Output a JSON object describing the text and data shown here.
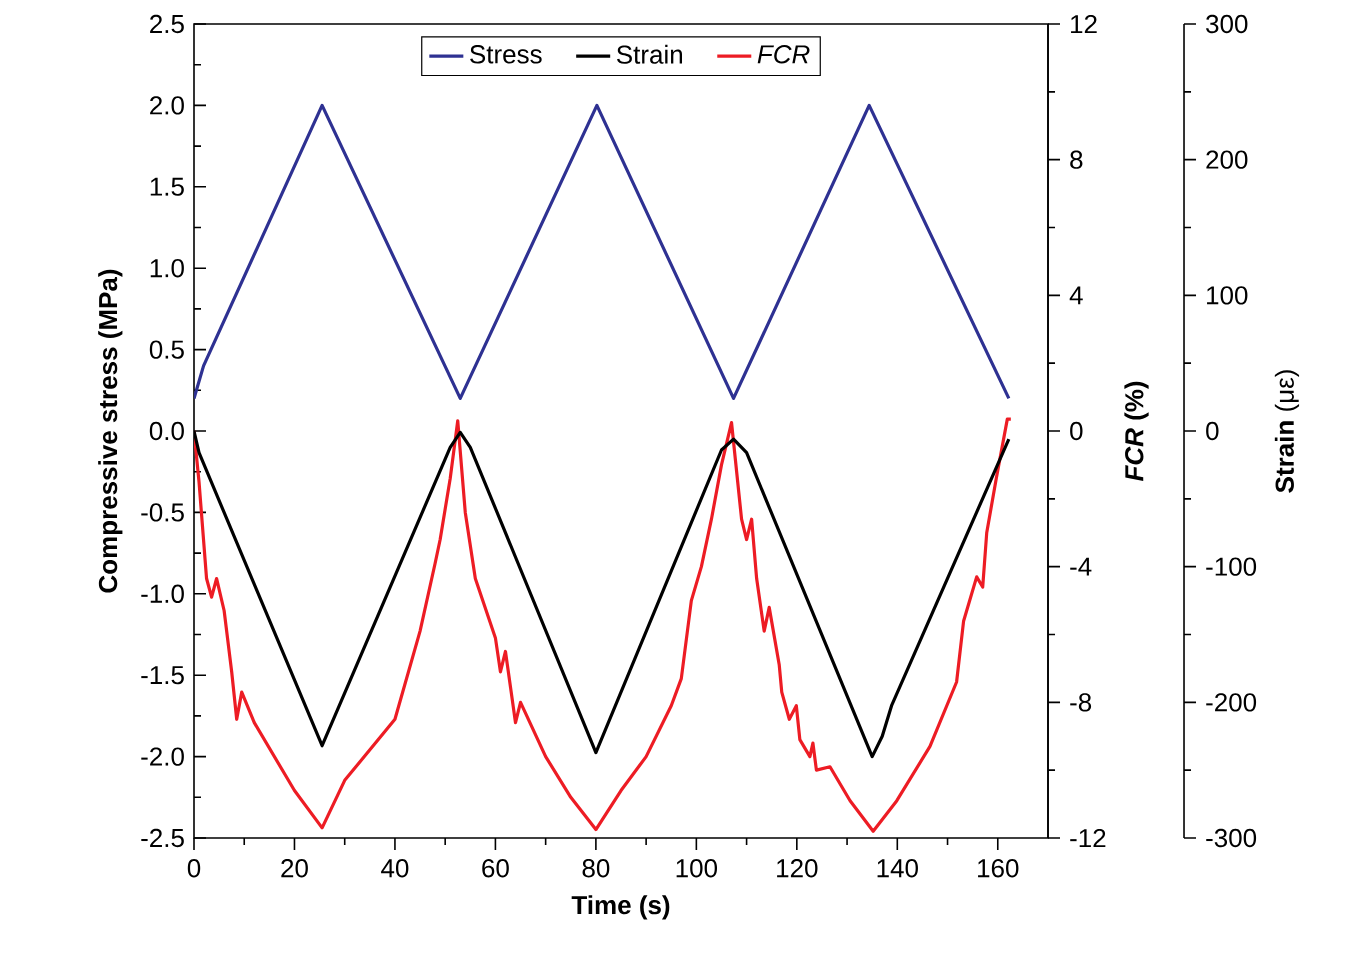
{
  "chart_data": {
    "type": "line",
    "xlabel": "Time (s)",
    "ylabel": "Compressive stress (MPa)",
    "y2label": "*FCR* (%)",
    "y3label": "**Strain** (με)",
    "xlim": [
      0,
      170
    ],
    "xticks": [
      0,
      20,
      40,
      60,
      80,
      100,
      120,
      140,
      160
    ],
    "ylim": [
      -2.5,
      2.5
    ],
    "yticks": [
      -2.5,
      {
        "value": -2,
        "label": "-2.0"
      },
      -1.5,
      {
        "value": -1,
        "label": "-1.0"
      },
      -0.5,
      {
        "value": 0,
        "label": "0.0"
      },
      0.5,
      {
        "value": 1,
        "label": "1.0"
      },
      1.5,
      {
        "value": 2,
        "label": "2.0"
      },
      2.5
    ],
    "y2lim": [
      -12,
      12
    ],
    "y2ticks": [
      -12,
      -8,
      -4,
      0,
      4,
      8,
      12
    ],
    "y3lim": [
      -300,
      300
    ],
    "y3ticks": [
      -300,
      -200,
      -100,
      0,
      100,
      200,
      300
    ],
    "legend": "top",
    "grid": false,
    "line_style": "solid",
    "series": [
      {
        "name": "Stress",
        "color": "#2e3192",
        "axis": "y",
        "x": [
          0,
          1.9,
          25.5,
          53,
          80.2,
          107.4,
          134.4,
          162.2
        ],
        "values": [
          0.2,
          0.4,
          2,
          0.2,
          2,
          0.2,
          2,
          0.2
        ]
      },
      {
        "name": "Strain",
        "color": "#000000",
        "axis": "y3",
        "x": [
          0,
          1,
          25.5,
          51,
          53,
          55,
          80,
          105,
          107.4,
          110,
          135,
          137,
          138.9,
          162.2
        ],
        "values": [
          0,
          -16,
          -232,
          -12,
          -1,
          -12,
          -237,
          -14,
          -6,
          -16,
          -240,
          -225,
          -202,
          -6
        ]
      },
      {
        "name": "*FCR*",
        "color": "#ed1c24",
        "axis": "y2",
        "x": [
          0,
          1,
          2.5,
          3.5,
          4.5,
          6,
          7.5,
          8.5,
          9.5,
          12,
          20,
          25.5,
          30,
          40,
          45,
          48,
          49,
          51,
          52.5,
          54,
          56,
          60,
          61,
          62,
          64,
          65,
          70,
          75,
          80,
          85,
          90,
          95,
          97,
          99,
          101,
          103,
          105,
          107,
          109,
          110,
          111,
          112,
          113.5,
          114.5,
          116.5,
          117,
          118.5,
          119.9,
          120.6,
          122.6,
          123.2,
          123.9,
          126.6,
          130.6,
          135.2,
          139.9,
          146.5,
          151.8,
          153.2,
          155.8,
          157,
          157.8,
          159.7,
          161.9,
          162.6
        ],
        "values": [
          0,
          -1.5,
          -4.35,
          -4.9,
          -4.35,
          -5.3,
          -7.1,
          -8.5,
          -7.7,
          -8.6,
          -10.6,
          -11.7,
          -10.3,
          -8.5,
          -5.9,
          -3.9,
          -3.2,
          -1.4,
          0.3,
          -2.4,
          -4.35,
          -6.1,
          -7.1,
          -6.5,
          -8.6,
          -8,
          -9.6,
          -10.8,
          -11.75,
          -10.6,
          -9.6,
          -8.1,
          -7.3,
          -5,
          -4,
          -2.6,
          -1,
          0.25,
          -2.6,
          -3.2,
          -2.6,
          -4.35,
          -5.9,
          -5.2,
          -6.9,
          -7.7,
          -8.5,
          -8.1,
          -9.1,
          -9.6,
          -9.2,
          -10,
          -9.9,
          -10.9,
          -11.8,
          -10.9,
          -9.3,
          -7.4,
          -5.6,
          -4.3,
          -4.6,
          -3,
          -1.4,
          0.35,
          0.35
        ]
      }
    ]
  }
}
